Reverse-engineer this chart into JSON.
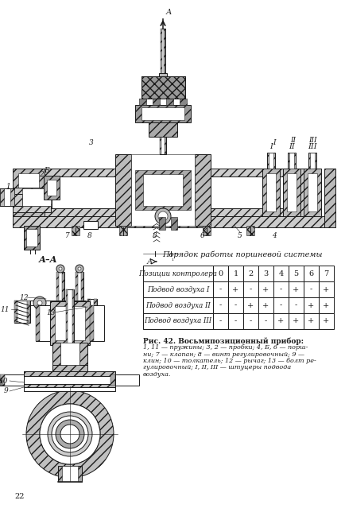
{
  "title": "Порядок работы поршневой системы",
  "table_header": [
    "Позиции контролера",
    "0",
    "1",
    "2",
    "3",
    "4",
    "5",
    "6",
    "7"
  ],
  "table_rows": [
    [
      "Подвод воздуха I",
      "-",
      "+",
      "-",
      "+",
      "-",
      "+",
      "-",
      "+"
    ],
    [
      "Подвод воздуха II",
      "-",
      "-",
      "+",
      "+",
      "-",
      "-",
      "+",
      "+"
    ],
    [
      "Подвод воздуха III",
      "-",
      "-",
      "-",
      "-",
      "+",
      "+",
      "+",
      "+"
    ]
  ],
  "caption_bold": "Рис. 42. Восьмипозиционный прибор:",
  "caption_lines": [
    "1, 11 — пружины; 3, 2 — пробки; 4, Б, 6 — порш-",
    "ни; 7 — клапан; 8 — винт регулировочный; 9 —",
    "клин; 10 — толкатель; 12 — рычаг; 13 — болт ре-",
    "гулировочный; I, II, III — штуцеры подвода",
    "воздуха."
  ],
  "section_label": "А–А",
  "bg_color": "#ffffff",
  "line_color": "#1a1a1a",
  "hatch_color": "#333333",
  "page_num": "22"
}
